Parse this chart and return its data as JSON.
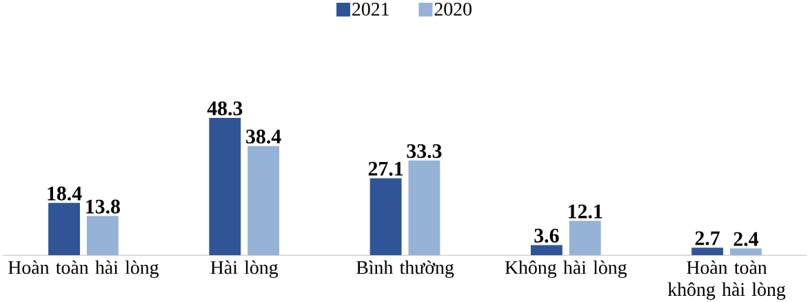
{
  "chart_data": {
    "type": "bar",
    "categories": [
      "Hoàn toàn hài lòng",
      "Hài lòng",
      "Bình thường",
      "Không hài lòng",
      "Hoàn toàn không hài lòng"
    ],
    "series": [
      {
        "name": "2021",
        "color": "#2f5597",
        "values": [
          18.4,
          48.3,
          27.1,
          3.6,
          2.7
        ]
      },
      {
        "name": "2020",
        "color": "#95b3d7",
        "values": [
          13.8,
          38.4,
          33.3,
          12.1,
          2.4
        ]
      }
    ],
    "data_labels": true,
    "legend": "top"
  }
}
